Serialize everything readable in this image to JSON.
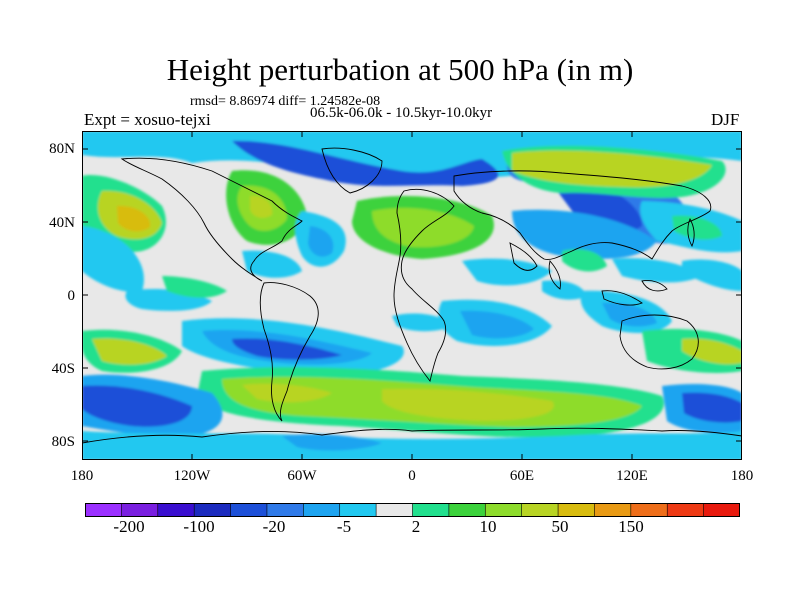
{
  "title": "Height perturbation at 500 hPa (in m)",
  "subtitle_stats": "rmsd= 8.86974 diff= 1.24582e-08",
  "subtitle_period": "06.5k-06.0k - 10.5kyr-10.0kyr",
  "experiment_label": "Expt = xosuo-tejxi",
  "season_label": "DJF",
  "lat_labels": [
    "80N",
    "40N",
    "0",
    "40S",
    "80S"
  ],
  "lon_labels": [
    "180",
    "120W",
    "60W",
    "0",
    "60E",
    "120E",
    "180"
  ],
  "colorbar": {
    "colors": [
      "#9b30ff",
      "#7a1fe0",
      "#3a0fd0",
      "#1c2bbf",
      "#1d50d8",
      "#2f7ae8",
      "#1ea4f0",
      "#22c8f0",
      "#e8e8e8",
      "#22e08e",
      "#3cd23c",
      "#8edc2c",
      "#b8d424",
      "#d8bc10",
      "#e89a14",
      "#ee6e1a",
      "#ee3a14",
      "#e81a0e"
    ],
    "tick_labels": [
      "-200",
      "-100",
      "-20",
      "-5",
      "2",
      "10",
      "50",
      "150"
    ]
  }
}
